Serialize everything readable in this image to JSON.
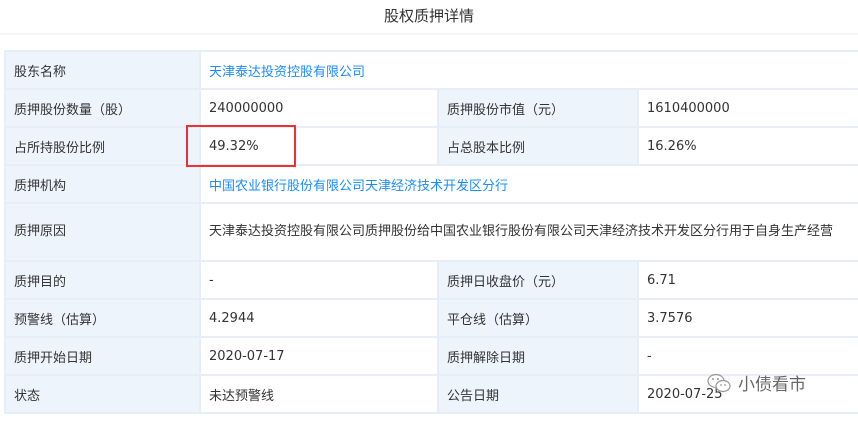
{
  "title": "股权质押详情",
  "rows": {
    "shareholder": {
      "label": "股东名称",
      "value": "天津泰达投资控股有限公司"
    },
    "pledged_shares": {
      "label": "质押股份数量（股）",
      "value": "240000000"
    },
    "market_value": {
      "label": "质押股份市值（元）",
      "value": "1610400000"
    },
    "ratio_held": {
      "label": "占所持股份比例",
      "value": "49.32%"
    },
    "ratio_total": {
      "label": "占总股本比例",
      "value": "16.26%"
    },
    "pledgee": {
      "label": "质押机构",
      "value": "中国农业银行股份有限公司天津经济技术开发区分行"
    },
    "reason": {
      "label": "质押原因",
      "value": "天津泰达投资控股有限公司质押股份给中国农业银行股份有限公司天津经济技术开发区分行用于自身生产经营"
    },
    "purpose": {
      "label": "质押目的",
      "value": "-"
    },
    "close_price": {
      "label": "质押日收盘价（元）",
      "value": "6.71"
    },
    "warning_line": {
      "label": "预警线（估算）",
      "value": "4.2944"
    },
    "liquidation_line": {
      "label": "平仓线（估算）",
      "value": "3.7576"
    },
    "start_date": {
      "label": "质押开始日期",
      "value": "2020-07-17"
    },
    "release_date": {
      "label": "质押解除日期",
      "value": "-"
    },
    "status": {
      "label": "状态",
      "value": "未达预警线"
    },
    "announce_date": {
      "label": "公告日期",
      "value": "2020-07-25"
    }
  },
  "watermark": "小债看市",
  "highlight_color": "#f03030"
}
